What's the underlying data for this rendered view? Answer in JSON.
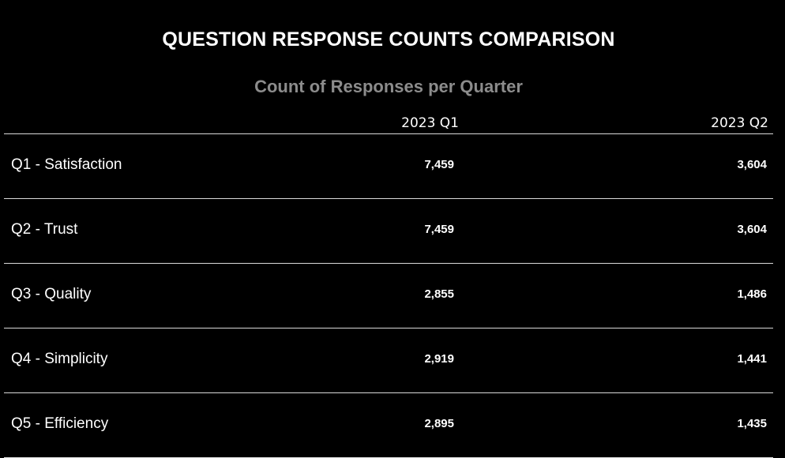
{
  "chart_data": {
    "type": "table",
    "title": "QUESTION RESPONSE COUNTS COMPARISON",
    "subtitle": "Count of Responses per Quarter",
    "columns": [
      "2023 Q1",
      "2023 Q2"
    ],
    "categories": [
      "Q1 - Satisfaction",
      "Q2 - Trust",
      "Q3 - Quality",
      "Q4 - Simplicity",
      "Q5 - Efficiency"
    ],
    "series": [
      {
        "name": "2023 Q1",
        "values": [
          7459,
          7459,
          2855,
          2919,
          2895
        ]
      },
      {
        "name": "2023 Q2",
        "values": [
          3604,
          3604,
          1486,
          1441,
          1435
        ]
      }
    ],
    "cells": [
      [
        "7,459",
        "3,604"
      ],
      [
        "7,459",
        "3,604"
      ],
      [
        "2,855",
        "1,486"
      ],
      [
        "2,919",
        "1,441"
      ],
      [
        "2,895",
        "1,435"
      ]
    ]
  },
  "colors": {
    "background": "#000000",
    "title": "#ffffff",
    "subtitle": "#8c8c8c",
    "divider": "#d9d9d9"
  }
}
